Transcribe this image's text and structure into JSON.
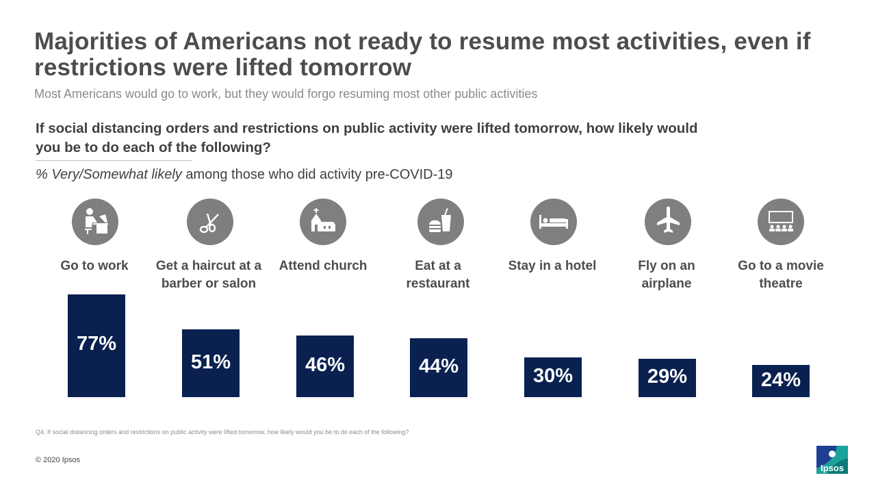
{
  "header": {
    "title": "Majorities of Americans not ready to resume most activities, even if restrictions were lifted tomorrow",
    "subtitle": "Most Americans would go to work, but they would forgo resuming most other public activities"
  },
  "question": {
    "text": "If social distancing orders and restrictions on public activity were lifted tomorrow, how likely would you be to do each of the following?",
    "base_italic": "% Very/Somewhat likely",
    "base_rest": " among those who did activity pre-COVID-19"
  },
  "chart_data": {
    "type": "bar",
    "title": "If social distancing orders and restrictions on public activity were lifted tomorrow, how likely would you be to do each of the following?",
    "ylabel": "% Very/Somewhat likely among those who did activity pre-COVID-19",
    "xlabel": "",
    "ylim": [
      0,
      100
    ],
    "categories": [
      "Go to work",
      "Get a haircut at a barber or salon",
      "Attend church",
      "Eat at a restaurant",
      "Stay in a hotel",
      "Fly on an airplane",
      "Go to a movie theatre"
    ],
    "values": [
      77,
      51,
      46,
      44,
      30,
      29,
      24
    ],
    "value_labels": [
      "77%",
      "51%",
      "46%",
      "44%",
      "30%",
      "29%",
      "24%"
    ],
    "icons": [
      "worker-at-desk-icon",
      "scissors-icon",
      "church-icon",
      "restaurant-icon",
      "hotel-bed-icon",
      "airplane-icon",
      "movie-theatre-icon"
    ],
    "colors": {
      "bar": "#0a2150",
      "icon_circle": "#7f7f7f",
      "value_text": "#ffffff"
    }
  },
  "footer": {
    "footnote": "Q4. If social distancing orders and restrictions on public activity were lifted tomorrow, how likely would you be to do each of the following?",
    "copyright": "© 2020 Ipsos",
    "logo_text": "Ipsos"
  }
}
